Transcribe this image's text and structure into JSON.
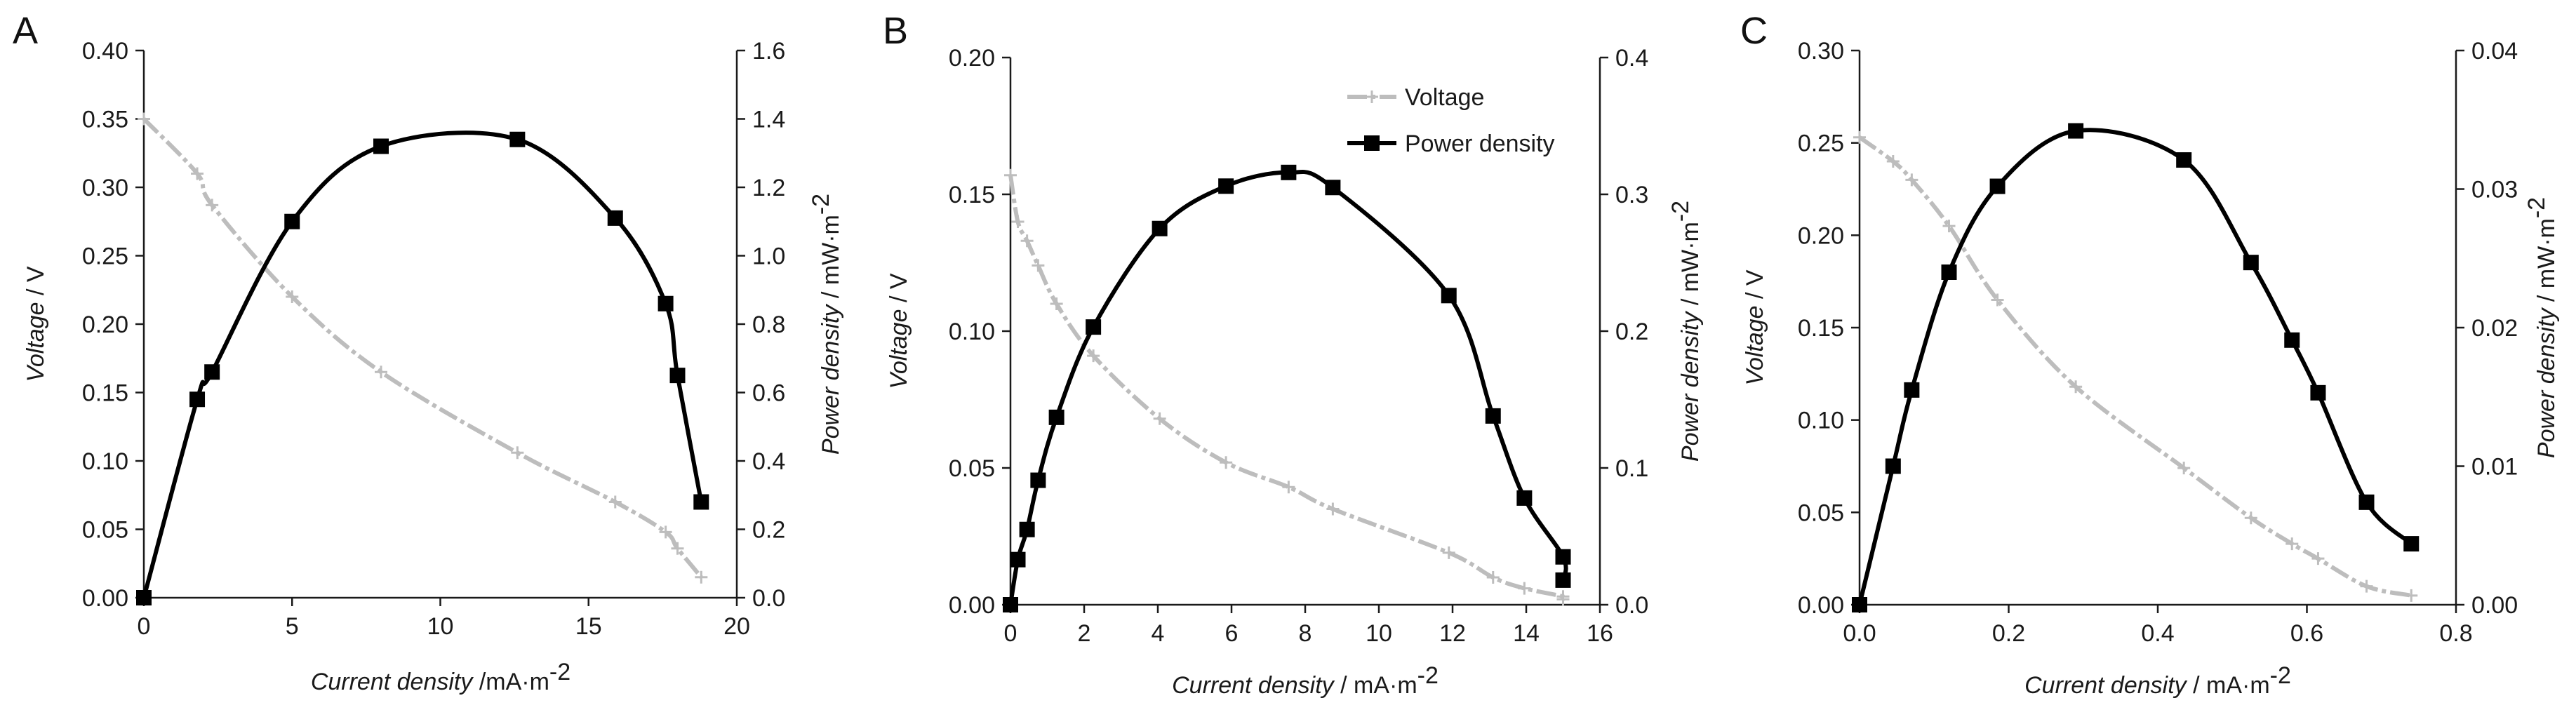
{
  "colors": {
    "voltage": "#bdbdbd",
    "power": "#000000",
    "axis": "#1a1a1a"
  },
  "legend": {
    "voltage": "Voltage",
    "power": "Power density"
  },
  "chart_data": [
    {
      "type": "line",
      "panel": "A",
      "xlabel_italic": "Current density",
      "xlabel_unit": " /mA·m",
      "xlabel_sup": "-2",
      "ylabel_italic": "Voltage",
      "ylabel_unit": " / V",
      "y2label_italic": "Power density",
      "y2label_unit": " / mW·m",
      "y2label_sup": "-2",
      "xlim": [
        0,
        20
      ],
      "xticks": [
        0,
        5,
        10,
        15,
        20
      ],
      "ylim": [
        0,
        0.4
      ],
      "yticks": [
        0,
        0.05,
        0.1,
        0.15,
        0.2,
        0.25,
        0.3,
        0.35,
        0.4
      ],
      "ydec": 2,
      "y2lim": [
        0,
        1.6
      ],
      "y2ticks": [
        0,
        0.2,
        0.4,
        0.6,
        0.8,
        1.0,
        1.2,
        1.4,
        1.6
      ],
      "y2dec": 1,
      "xdec": 0,
      "voltage": {
        "x": [
          0,
          1.8,
          2.3,
          5.0,
          8.0,
          12.6,
          15.9,
          17.6,
          18.0,
          18.8
        ],
        "y": [
          0.35,
          0.31,
          0.287,
          0.22,
          0.165,
          0.106,
          0.07,
          0.048,
          0.036,
          0.015
        ]
      },
      "power": {
        "x": [
          0,
          1.8,
          2.3,
          5.0,
          8.0,
          12.6,
          15.9,
          17.6,
          18.0,
          18.8
        ],
        "y": [
          0,
          0.58,
          0.66,
          1.1,
          1.32,
          1.34,
          1.11,
          0.86,
          0.65,
          0.28
        ]
      }
    },
    {
      "type": "line",
      "panel": "B",
      "xlabel_italic": "Current density",
      "xlabel_unit": " / mA·m",
      "xlabel_sup": "-2",
      "ylabel_italic": "Voltage",
      "ylabel_unit": " / V",
      "y2label_italic": "Power density",
      "y2label_unit": " / mW·m",
      "y2label_sup": "-2",
      "xlim": [
        0,
        16
      ],
      "xticks": [
        0,
        2,
        4,
        6,
        8,
        10,
        12,
        14,
        16
      ],
      "ylim": [
        0,
        0.2
      ],
      "yticks": [
        0,
        0.05,
        0.1,
        0.15,
        0.2
      ],
      "ydec": 2,
      "y2lim": [
        0,
        0.4
      ],
      "y2ticks": [
        0,
        0.1,
        0.2,
        0.3,
        0.4
      ],
      "y2dec": 1,
      "xdec": 0,
      "voltage": {
        "x": [
          0,
          0.2,
          0.45,
          0.75,
          1.25,
          2.25,
          4.05,
          5.85,
          7.55,
          8.75,
          11.9,
          13.1,
          13.95,
          15.0,
          15.0
        ],
        "y": [
          0.157,
          0.14,
          0.133,
          0.124,
          0.11,
          0.091,
          0.068,
          0.052,
          0.043,
          0.035,
          0.019,
          0.01,
          0.006,
          0.003,
          0.002
        ]
      },
      "power": {
        "x": [
          0,
          0.2,
          0.45,
          0.75,
          1.25,
          2.25,
          4.05,
          5.85,
          7.55,
          8.75,
          11.9,
          13.1,
          13.95,
          15.0,
          15.0
        ],
        "y": [
          0,
          0.033,
          0.055,
          0.091,
          0.137,
          0.203,
          0.275,
          0.306,
          0.316,
          0.305,
          0.226,
          0.138,
          0.078,
          0.035,
          0.018
        ]
      }
    },
    {
      "type": "line",
      "panel": "C",
      "xlabel_italic": "Current density",
      "xlabel_unit": " / mA·m",
      "xlabel_sup": "-2",
      "ylabel_italic": "Voltage",
      "ylabel_unit": " / V",
      "y2label_italic": "Power density",
      "y2label_unit": " / mW·m",
      "y2label_sup": "-2",
      "xlim": [
        0,
        0.8
      ],
      "xticks": [
        0,
        0.2,
        0.4,
        0.6,
        0.8
      ],
      "ylim": [
        0,
        0.3
      ],
      "yticks": [
        0,
        0.05,
        0.1,
        0.15,
        0.2,
        0.25,
        0.3
      ],
      "ydec": 2,
      "y2lim": [
        0,
        0.04
      ],
      "y2ticks": [
        0,
        0.01,
        0.02,
        0.03,
        0.04
      ],
      "y2dec": 2,
      "xdec": 1,
      "voltage": {
        "x": [
          0,
          0.045,
          0.07,
          0.12,
          0.185,
          0.29,
          0.435,
          0.525,
          0.58,
          0.615,
          0.68,
          0.74
        ],
        "y": [
          0.253,
          0.24,
          0.23,
          0.205,
          0.165,
          0.118,
          0.074,
          0.047,
          0.033,
          0.025,
          0.01,
          0.005
        ]
      },
      "power": {
        "x": [
          0,
          0.045,
          0.07,
          0.12,
          0.185,
          0.29,
          0.435,
          0.525,
          0.58,
          0.615,
          0.68,
          0.74
        ],
        "y": [
          0,
          0.01,
          0.0155,
          0.024,
          0.0302,
          0.0342,
          0.0321,
          0.0247,
          0.0191,
          0.0153,
          0.0074,
          0.0044
        ]
      }
    }
  ]
}
